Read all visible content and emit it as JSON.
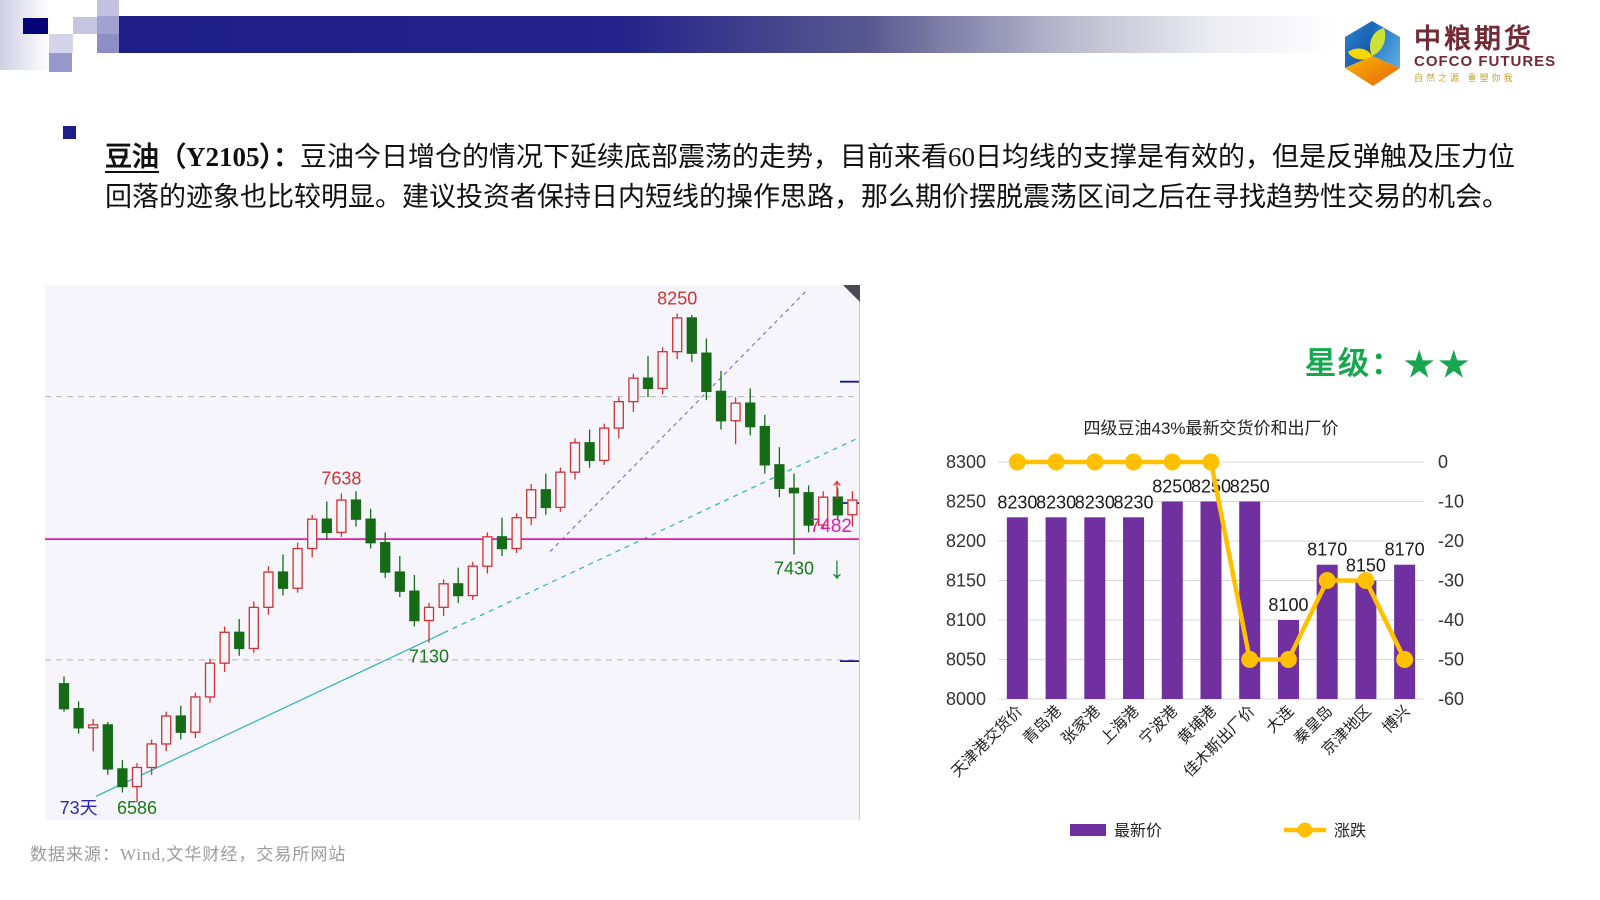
{
  "slide": {
    "bullet_heading_emph": "豆油",
    "bullet_heading_rest": "（Y2105）：",
    "bullet_body": "豆油今日增仓的情况下延续底部震荡的走势，目前来看60日均线的支撑是有效的，但是反弹触及压力位回落的迹象也比较明显。建议投资者保持日内短线的操作思路，那么期价摆脱震荡区间之后在寻找趋势性交易的机会。",
    "star_rating": {
      "label": "星级：",
      "stars": "★★",
      "color": "#17a74e"
    },
    "source_note": "数据来源：Wind,文华财经，交易所网站"
  },
  "logo": {
    "name_cn": "中粮期货",
    "name_en": "COFCO FUTURES",
    "tagline": "自然之源  重塑你我",
    "brand_color": "#722b35"
  },
  "chart_data": [
    {
      "type": "candlestick",
      "background": "#f5f5fb",
      "up_color": "#cf3333",
      "down_color": "#166b16",
      "price_axis": {
        "min": 6550,
        "max": 8330
      },
      "dashed_gridlines": [
        7967,
        7071
      ],
      "right_tick_prices": [
        8018,
        7605,
        7067
      ],
      "support_line": {
        "value": 7482,
        "label": "7482",
        "color": "#e61ca5"
      },
      "trendline": {
        "from_index": 2.2,
        "from_price": 6607,
        "to_index": 54.5,
        "to_price": 7826,
        "solid_until_index": 26,
        "color": "#38b8b8"
      },
      "ma_line": {
        "from_index": 33.3,
        "from_price": 7440,
        "to_index": 50.9,
        "to_price": 8330,
        "color": "#8282cc"
      },
      "annotations": [
        {
          "text": "8250",
          "color": "#cf3333",
          "anchor_index": 42,
          "placement": "above"
        },
        {
          "text": "7638",
          "color": "#cf3333",
          "anchor_index": 19,
          "placement": "above"
        },
        {
          "text": "7130",
          "color": "#1a7a1a",
          "anchor_index": 25,
          "placement": "below"
        },
        {
          "text": "7430",
          "color": "#1a7a1a",
          "anchor_index": 50,
          "placement": "below"
        },
        {
          "text": "6586",
          "color": "#1a7a1a",
          "anchor_index": 5,
          "placement": "below",
          "price": 6586
        },
        {
          "text": "73天",
          "color": "#2a2ab0",
          "anchor_index": 1,
          "placement": "below",
          "price": 6600
        }
      ],
      "signal_arrows": [
        {
          "glyph": "↑",
          "color": "#e83333",
          "x": 792,
          "y": 213
        },
        {
          "glyph": "↓",
          "color": "#1c8a33",
          "x": 792,
          "y": 293
        }
      ],
      "candles": [
        [
          6990,
          7015,
          6895,
          6905
        ],
        [
          6905,
          6930,
          6820,
          6840
        ],
        [
          6840,
          6870,
          6760,
          6850
        ],
        [
          6850,
          6860,
          6680,
          6700
        ],
        [
          6700,
          6730,
          6620,
          6640
        ],
        [
          6640,
          6720,
          6586,
          6705
        ],
        [
          6705,
          6800,
          6680,
          6785
        ],
        [
          6785,
          6895,
          6760,
          6880
        ],
        [
          6880,
          6915,
          6800,
          6825
        ],
        [
          6825,
          6960,
          6805,
          6945
        ],
        [
          6945,
          7075,
          6925,
          7060
        ],
        [
          7060,
          7185,
          7030,
          7165
        ],
        [
          7165,
          7210,
          7085,
          7110
        ],
        [
          7110,
          7270,
          7095,
          7250
        ],
        [
          7250,
          7390,
          7225,
          7370
        ],
        [
          7370,
          7430,
          7290,
          7315
        ],
        [
          7315,
          7470,
          7300,
          7450
        ],
        [
          7450,
          7565,
          7420,
          7550
        ],
        [
          7550,
          7610,
          7480,
          7505
        ],
        [
          7505,
          7638,
          7490,
          7615
        ],
        [
          7615,
          7645,
          7525,
          7550
        ],
        [
          7550,
          7585,
          7450,
          7470
        ],
        [
          7470,
          7505,
          7350,
          7370
        ],
        [
          7370,
          7425,
          7285,
          7305
        ],
        [
          7305,
          7360,
          7185,
          7205
        ],
        [
          7205,
          7265,
          7130,
          7250
        ],
        [
          7250,
          7345,
          7220,
          7330
        ],
        [
          7330,
          7385,
          7265,
          7290
        ],
        [
          7290,
          7405,
          7275,
          7390
        ],
        [
          7390,
          7505,
          7365,
          7490
        ],
        [
          7490,
          7555,
          7425,
          7450
        ],
        [
          7450,
          7570,
          7435,
          7555
        ],
        [
          7555,
          7670,
          7530,
          7650
        ],
        [
          7650,
          7705,
          7565,
          7590
        ],
        [
          7590,
          7725,
          7575,
          7710
        ],
        [
          7710,
          7825,
          7685,
          7810
        ],
        [
          7810,
          7855,
          7725,
          7750
        ],
        [
          7750,
          7875,
          7735,
          7860
        ],
        [
          7860,
          7965,
          7825,
          7950
        ],
        [
          7950,
          8045,
          7915,
          8030
        ],
        [
          8030,
          8105,
          7965,
          7995
        ],
        [
          7995,
          8135,
          7975,
          8120
        ],
        [
          8120,
          8250,
          8095,
          8235
        ],
        [
          8235,
          8245,
          8085,
          8115
        ],
        [
          8115,
          8165,
          7955,
          7985
        ],
        [
          7985,
          8055,
          7855,
          7885
        ],
        [
          7885,
          7965,
          7805,
          7945
        ],
        [
          7945,
          7995,
          7835,
          7865
        ],
        [
          7865,
          7905,
          7705,
          7735
        ],
        [
          7735,
          7795,
          7625,
          7655
        ],
        [
          7655,
          7705,
          7430,
          7640
        ],
        [
          7640,
          7665,
          7505,
          7530
        ],
        [
          7530,
          7645,
          7515,
          7625
        ],
        [
          7625,
          7655,
          7545,
          7565
        ],
        [
          7565,
          7645,
          7525,
          7615
        ]
      ]
    },
    {
      "type": "bar+line",
      "title": "四级豆油43%最新交货价和出厂价",
      "categories": [
        "天津港交货价",
        "青岛港",
        "张家港",
        "上海港",
        "宁波港",
        "黄埔港",
        "佳木斯出厂价",
        "大连",
        "秦皇岛",
        "京津地区",
        "博兴"
      ],
      "series": [
        {
          "name": "最新价",
          "type": "bar",
          "axis": "left",
          "color": "#7030A0",
          "values": [
            8230,
            8230,
            8230,
            8230,
            8250,
            8250,
            8250,
            8100,
            8170,
            8150,
            8170
          ]
        },
        {
          "name": "涨跌",
          "type": "line",
          "axis": "right",
          "color": "#FFC000",
          "values": [
            0,
            0,
            0,
            0,
            0,
            0,
            -50,
            -50,
            -30,
            -30,
            -50
          ]
        }
      ],
      "left_axis": {
        "ticks": [
          8300,
          8250,
          8200,
          8150,
          8100,
          8050,
          8000
        ]
      },
      "right_axis": {
        "ticks": [
          0,
          -10,
          -20,
          -30,
          -40,
          -50,
          -60
        ]
      },
      "legend_position": "bottom",
      "grid": true
    }
  ]
}
